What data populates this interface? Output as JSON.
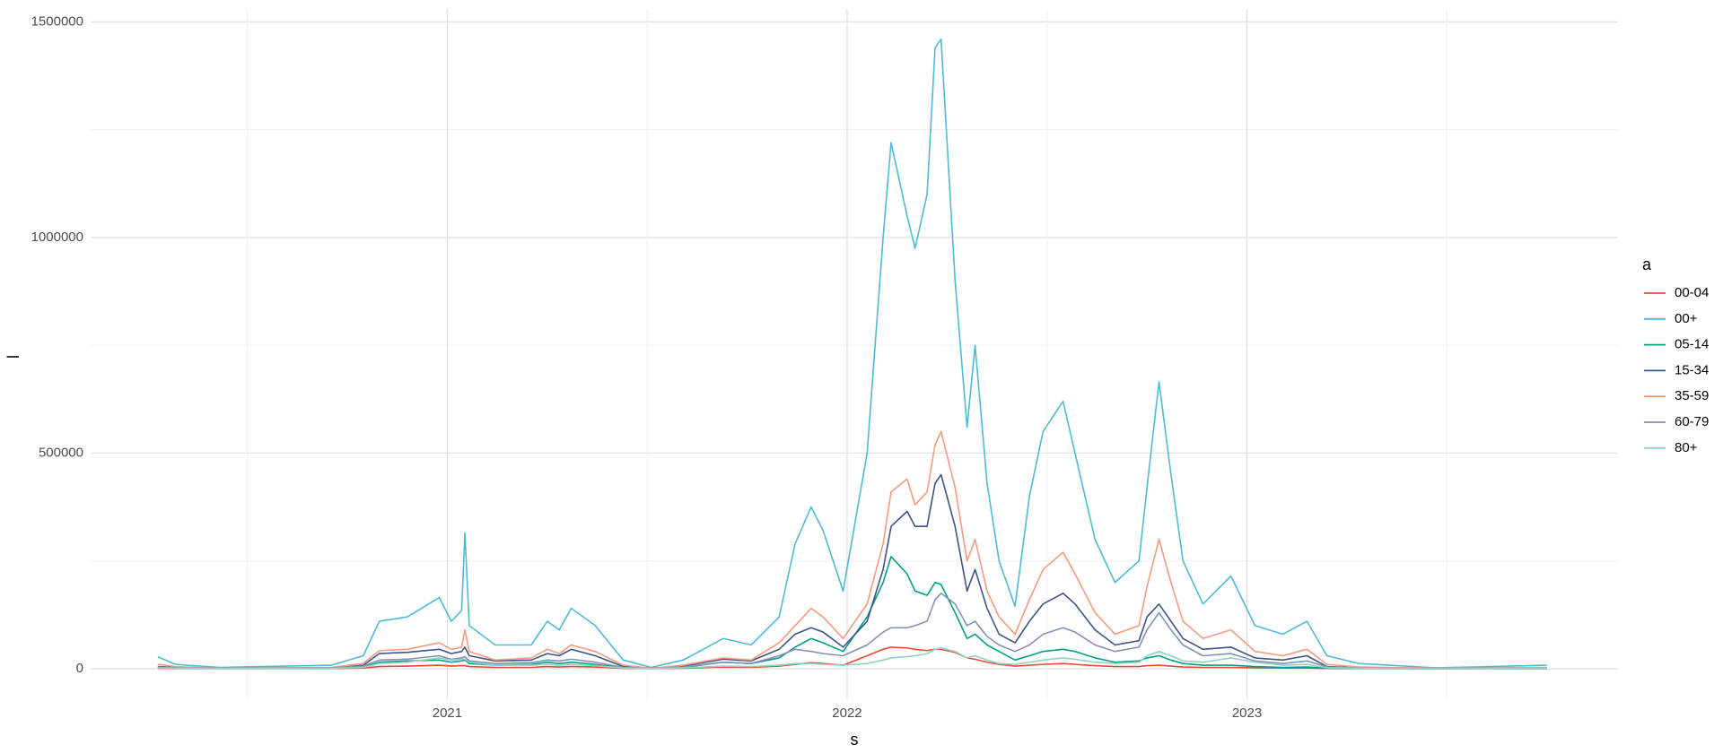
{
  "chart_data": {
    "type": "line",
    "x_label": "s",
    "y_label": "l",
    "legend_title": "a",
    "x": [
      2020.276,
      2020.32,
      2020.43,
      2020.71,
      2020.79,
      2020.83,
      2020.9,
      2020.98,
      2021.01,
      2021.036,
      2021.044,
      2021.055,
      2021.12,
      2021.21,
      2021.25,
      2021.28,
      2021.31,
      2021.37,
      2021.44,
      2021.51,
      2021.59,
      2021.69,
      2021.76,
      2021.83,
      2021.87,
      2021.91,
      2021.94,
      2021.99,
      2022.05,
      2022.09,
      2022.11,
      2022.15,
      2022.17,
      2022.2,
      2022.22,
      2022.235,
      2022.27,
      2022.3,
      2022.32,
      2022.35,
      2022.38,
      2022.42,
      2022.456,
      2022.49,
      2022.54,
      2022.57,
      2022.62,
      2022.67,
      2022.73,
      2022.75,
      2022.78,
      2022.81,
      2022.84,
      2022.89,
      2022.96,
      2023.02,
      2023.09,
      2023.15,
      2023.2,
      2023.28,
      2023.47,
      2023.75
    ],
    "series": [
      {
        "name": "00-04",
        "color": "#e64b35",
        "values": [
          1000,
          500,
          200,
          500,
          1500,
          5000,
          6000,
          8000,
          6000,
          7000,
          7000,
          5000,
          3000,
          3000,
          5000,
          4000,
          5000,
          4000,
          800,
          200,
          1000,
          4000,
          3000,
          6000,
          10000,
          14000,
          12000,
          8000,
          30000,
          45000,
          50000,
          48000,
          45000,
          42000,
          45000,
          45000,
          38000,
          25000,
          22000,
          15000,
          10000,
          6000,
          8000,
          10000,
          12000,
          10000,
          7000,
          5000,
          5000,
          7000,
          8000,
          6000,
          4000,
          3000,
          3000,
          2000,
          1500,
          1500,
          500,
          200,
          100,
          500
        ]
      },
      {
        "name": "00+",
        "color": "#4dbbd5",
        "values": [
          28000,
          10000,
          3000,
          8000,
          30000,
          110000,
          120000,
          165000,
          110000,
          135000,
          315000,
          100000,
          55000,
          55000,
          110000,
          90000,
          140000,
          100000,
          20000,
          3000,
          20000,
          70000,
          55000,
          120000,
          290000,
          375000,
          320000,
          180000,
          500000,
          1000000,
          1220000,
          1050000,
          975000,
          1100000,
          1440000,
          1460000,
          900000,
          560000,
          750000,
          430000,
          250000,
          145000,
          400000,
          550000,
          620000,
          500000,
          300000,
          200000,
          250000,
          420000,
          665000,
          450000,
          250000,
          150000,
          215000,
          100000,
          80000,
          110000,
          30000,
          12000,
          2000,
          8000
        ]
      },
      {
        "name": "05-14",
        "color": "#00a087",
        "values": [
          3000,
          1000,
          500,
          1000,
          4000,
          15000,
          18000,
          20000,
          15000,
          18000,
          20000,
          12000,
          8000,
          10000,
          15000,
          12000,
          15000,
          10000,
          2000,
          500,
          3000,
          15000,
          12000,
          25000,
          50000,
          70000,
          60000,
          40000,
          120000,
          200000,
          260000,
          220000,
          180000,
          170000,
          200000,
          195000,
          130000,
          70000,
          80000,
          55000,
          40000,
          20000,
          30000,
          40000,
          45000,
          40000,
          25000,
          15000,
          18000,
          25000,
          30000,
          20000,
          12000,
          8000,
          8000,
          5000,
          3000,
          4000,
          1000,
          500,
          200,
          1000
        ]
      },
      {
        "name": "15-34",
        "color": "#3c5488",
        "values": [
          5000,
          3000,
          1000,
          2000,
          8000,
          35000,
          38000,
          45000,
          35000,
          40000,
          50000,
          30000,
          18000,
          20000,
          35000,
          30000,
          45000,
          30000,
          5000,
          1000,
          6000,
          22000,
          18000,
          45000,
          80000,
          95000,
          85000,
          50000,
          110000,
          230000,
          330000,
          365000,
          330000,
          330000,
          430000,
          450000,
          330000,
          180000,
          230000,
          140000,
          80000,
          60000,
          110000,
          150000,
          175000,
          150000,
          90000,
          55000,
          65000,
          120000,
          150000,
          110000,
          70000,
          45000,
          50000,
          25000,
          20000,
          30000,
          5000,
          2000,
          500,
          2000
        ]
      },
      {
        "name": "35-59",
        "color": "#f39b7f",
        "values": [
          10000,
          5000,
          1000,
          3000,
          12000,
          42000,
          45000,
          60000,
          45000,
          50000,
          90000,
          40000,
          20000,
          25000,
          45000,
          35000,
          55000,
          40000,
          8000,
          1000,
          8000,
          25000,
          20000,
          60000,
          100000,
          140000,
          120000,
          70000,
          150000,
          290000,
          410000,
          440000,
          380000,
          410000,
          520000,
          550000,
          420000,
          250000,
          300000,
          180000,
          120000,
          80000,
          160000,
          230000,
          270000,
          220000,
          130000,
          80000,
          100000,
          190000,
          300000,
          200000,
          110000,
          70000,
          90000,
          40000,
          30000,
          45000,
          10000,
          4000,
          1000,
          3000
        ]
      },
      {
        "name": "60-79",
        "color": "#8491b4",
        "values": [
          4000,
          2000,
          500,
          2000,
          6000,
          20000,
          22000,
          30000,
          22000,
          25000,
          28000,
          18000,
          12000,
          14000,
          20000,
          18000,
          22000,
          15000,
          3000,
          500,
          4000,
          15000,
          12000,
          30000,
          45000,
          40000,
          35000,
          30000,
          55000,
          85000,
          95000,
          95000,
          100000,
          110000,
          160000,
          175000,
          150000,
          100000,
          110000,
          75000,
          55000,
          40000,
          55000,
          80000,
          95000,
          85000,
          55000,
          40000,
          50000,
          90000,
          130000,
          90000,
          55000,
          30000,
          35000,
          18000,
          12000,
          18000,
          4000,
          1500,
          300,
          2000
        ]
      },
      {
        "name": "80+",
        "color": "#91d1c2",
        "values": [
          2000,
          1000,
          500,
          1000,
          3000,
          12000,
          15000,
          25000,
          20000,
          22000,
          22000,
          15000,
          8000,
          8000,
          10000,
          8000,
          10000,
          7000,
          1500,
          300,
          2000,
          6000,
          5000,
          8000,
          12000,
          12000,
          10000,
          8000,
          12000,
          20000,
          25000,
          28000,
          30000,
          35000,
          45000,
          48000,
          40000,
          25000,
          30000,
          20000,
          12000,
          10000,
          15000,
          20000,
          25000,
          22000,
          15000,
          12000,
          15000,
          30000,
          40000,
          30000,
          18000,
          15000,
          25000,
          15000,
          8000,
          10000,
          2000,
          800,
          200,
          1500
        ]
      }
    ],
    "xlim": [
      2020.108,
      2023.928
    ],
    "xticks": [
      2021,
      2022,
      2023
    ],
    "ylim": [
      -70800,
      1530000
    ],
    "yticks": [
      0,
      500000,
      1000000,
      1500000
    ],
    "grid": true,
    "legend": "right"
  }
}
